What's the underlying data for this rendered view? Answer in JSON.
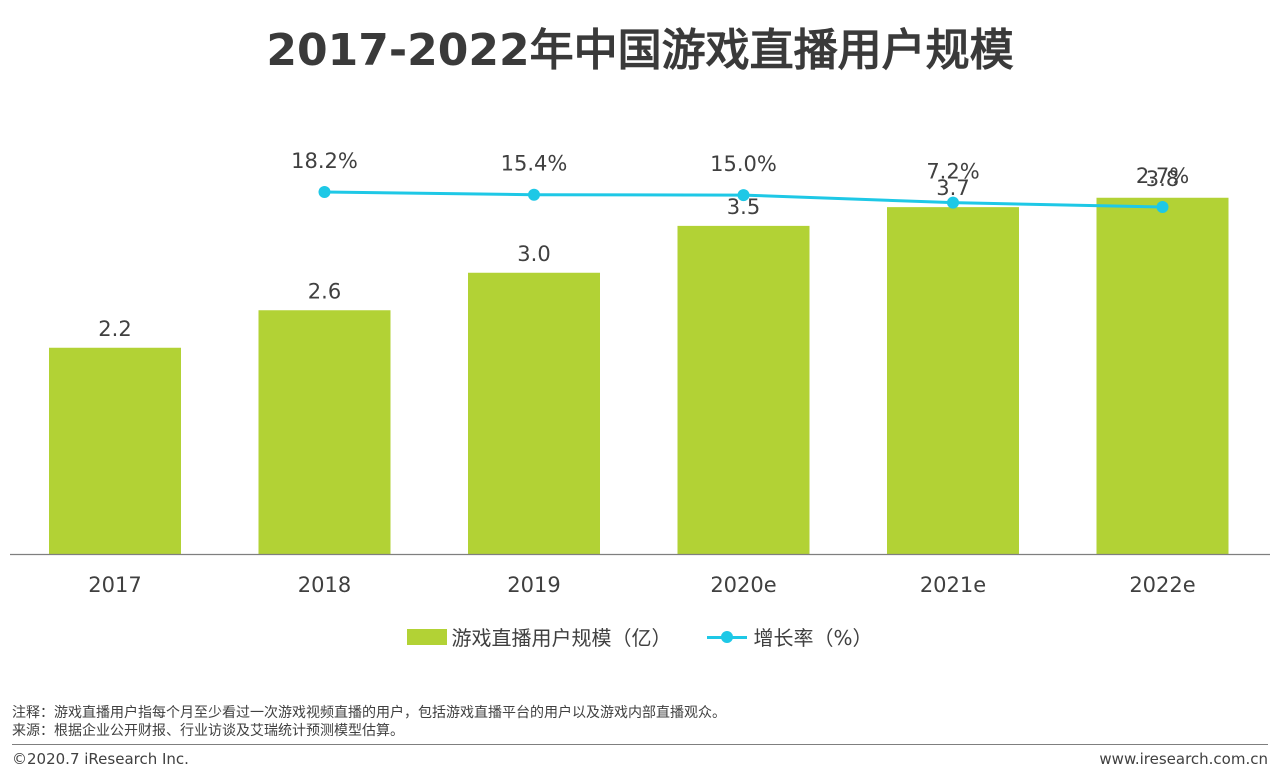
{
  "chart_data": {
    "type": "bar",
    "title": "2017-2022年中国游戏直播用户规模",
    "categories": [
      "2017",
      "2018",
      "2019",
      "2020e",
      "2021e",
      "2022e"
    ],
    "series": [
      {
        "name": "游戏直播用户规模（亿）",
        "kind": "bar",
        "color": "#b2d235",
        "values": [
          2.2,
          2.6,
          3.0,
          3.5,
          3.7,
          3.8
        ],
        "labels": [
          "2.2",
          "2.6",
          "3.0",
          "3.5",
          "3.7",
          "3.8"
        ]
      },
      {
        "name": "增长率（%）",
        "kind": "line",
        "color": "#1ec8e6",
        "values": [
          null,
          18.2,
          15.4,
          15.0,
          7.2,
          2.7
        ],
        "labels": [
          "",
          "18.2%",
          "15.4%",
          "15.0%",
          "7.2%",
          "2.7%"
        ]
      }
    ],
    "legend_position": "bottom",
    "ylim_bar": [
      0,
      4.0
    ],
    "grid": false
  },
  "notes": {
    "note_line": "注释：游戏直播用户指每个月至少看过一次游戏视频直播的用户，包括游戏直播平台的用户以及游戏内部直播观众。",
    "source_line": "来源：根据企业公开财报、行业访谈及艾瑞统计预测模型估算。"
  },
  "footer": {
    "copyright": "©2020.7 iResearch Inc.",
    "website": "www.iresearch.com.cn"
  }
}
